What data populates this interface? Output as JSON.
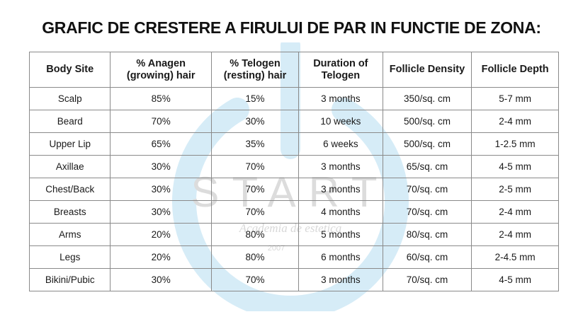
{
  "title": "GRAFIC DE CRESTERE A FIRULUI DE PAR IN FUNCTIE DE ZONA:",
  "watermark": {
    "brand": "START",
    "tagline": "Academia de estetica",
    "year": "2007"
  },
  "table": {
    "headers": [
      {
        "line1": "Body Site",
        "line2": ""
      },
      {
        "line1": "% Anagen",
        "line2": "(growing) hair"
      },
      {
        "line1": "% Telogen",
        "line2": "(resting) hair"
      },
      {
        "line1": "Duration of",
        "line2": "Telogen"
      },
      {
        "line1": "Follicle Density",
        "line2": ""
      },
      {
        "line1": "Follicle Depth",
        "line2": ""
      }
    ],
    "rows": [
      [
        "Scalp",
        "85%",
        "15%",
        "3 months",
        "350/sq. cm",
        "5-7 mm"
      ],
      [
        "Beard",
        "70%",
        "30%",
        "10 weeks",
        "500/sq. cm",
        "2-4 mm"
      ],
      [
        "Upper Lip",
        "65%",
        "35%",
        "6 weeks",
        "500/sq. cm",
        "1-2.5 mm"
      ],
      [
        "Axillae",
        "30%",
        "70%",
        "3 months",
        "65/sq. cm",
        "4-5 mm"
      ],
      [
        "Chest/Back",
        "30%",
        "70%",
        "3 months",
        "70/sq. cm",
        "2-5 mm"
      ],
      [
        "Breasts",
        "30%",
        "70%",
        "4 months",
        "70/sq. cm",
        "2-4 mm"
      ],
      [
        "Arms",
        "20%",
        "80%",
        "5 months",
        "80/sq. cm",
        "2-4 mm"
      ],
      [
        "Legs",
        "20%",
        "80%",
        "6 months",
        "60/sq. cm",
        "2-4.5 mm"
      ],
      [
        "Bikini/Pubic",
        "30%",
        "70%",
        "3 months",
        "70/sq. cm",
        "4-5 mm"
      ]
    ]
  },
  "colors": {
    "watermark": "#d6ecf7",
    "border": "#8a8a8a",
    "text": "#1a1a1a"
  }
}
